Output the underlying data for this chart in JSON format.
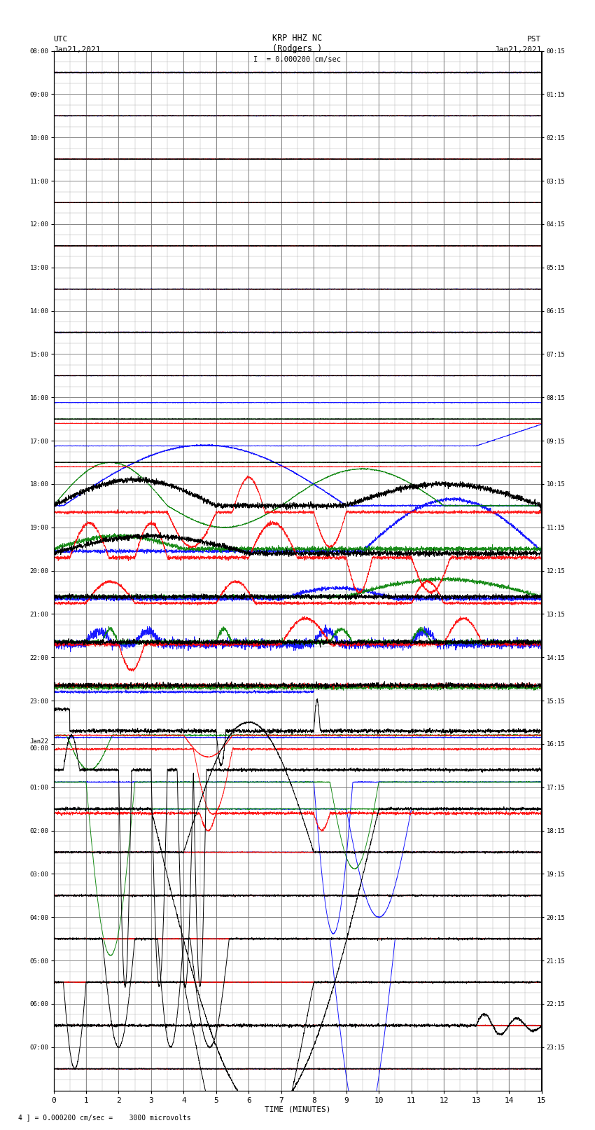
{
  "title_line1": "KRP HHZ NC",
  "title_line2": "(Rodgers )",
  "title_line3": "I  = 0.000200 cm/sec",
  "label_utc": "UTC",
  "label_utc_date": "Jan21,2021",
  "label_pst": "PST",
  "label_pst_date": "Jan21,2021",
  "xlabel": "TIME (MINUTES)",
  "footer": "4 ] = 0.000200 cm/sec =    3000 microvolts",
  "left_labels": [
    "08:00",
    "09:00",
    "10:00",
    "11:00",
    "12:00",
    "13:00",
    "14:00",
    "15:00",
    "16:00",
    "17:00",
    "18:00",
    "19:00",
    "20:00",
    "21:00",
    "22:00",
    "23:00",
    "Jan22\n00:00",
    "01:00",
    "02:00",
    "03:00",
    "04:00",
    "05:00",
    "06:00",
    "07:00"
  ],
  "right_labels": [
    "00:15",
    "01:15",
    "02:15",
    "03:15",
    "04:15",
    "05:15",
    "06:15",
    "07:15",
    "08:15",
    "09:15",
    "10:15",
    "11:15",
    "12:15",
    "13:15",
    "14:15",
    "15:15",
    "16:15",
    "17:15",
    "18:15",
    "19:15",
    "20:15",
    "21:15",
    "22:15",
    "23:15"
  ],
  "n_rows": 24,
  "x_min": 0,
  "x_max": 15,
  "bg_color": "#ffffff",
  "grid_major_color": "#555555",
  "grid_minor_color": "#aaaaaa"
}
